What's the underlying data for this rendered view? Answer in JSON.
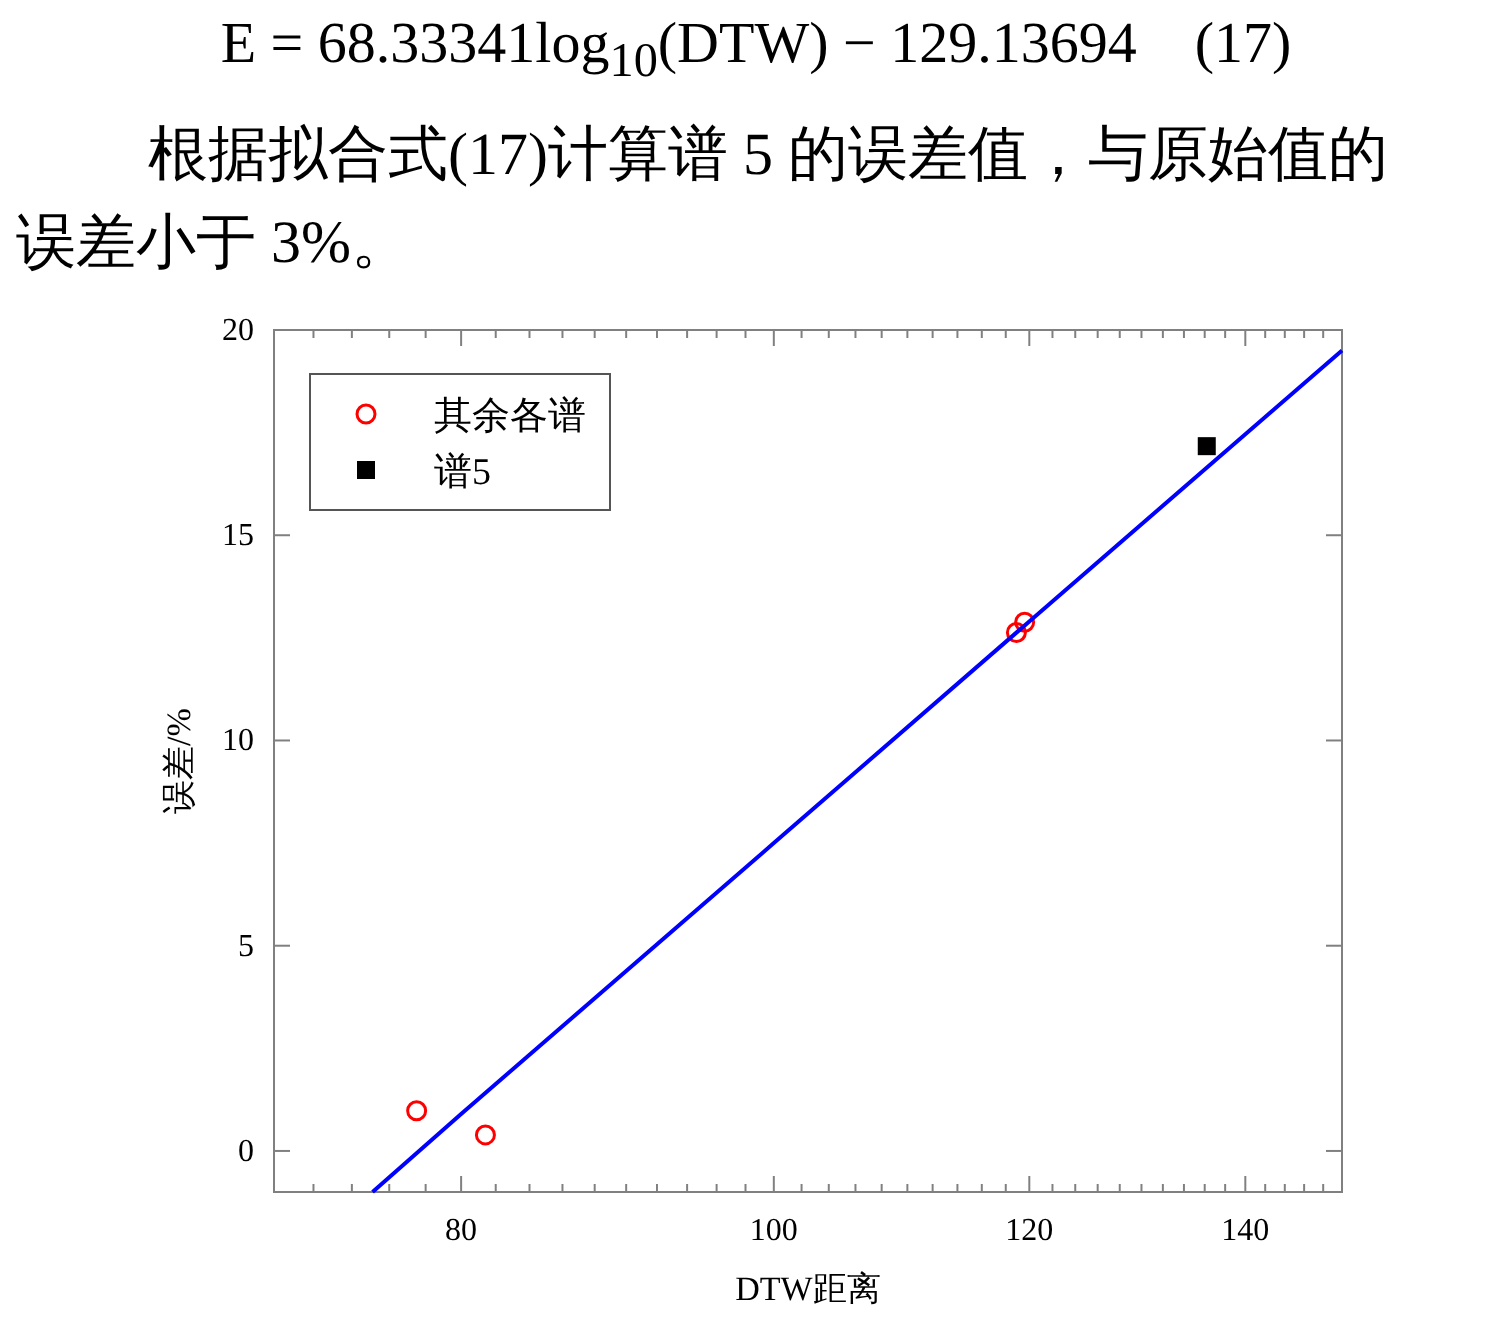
{
  "chart_data": {
    "type": "scatter",
    "annotations": [
      "E = 68.33341log$_{10}$(DTW) − 129.13694    (17)",
      "根据拟合式(17)计算谱 5 的误差值，与原始值的误差小于 3%。"
    ],
    "xlabel": "DTW距离",
    "ylabel": "误差/%",
    "log": "x",
    "xlim": [
      70,
      150
    ],
    "ylim": [
      -1,
      20
    ],
    "xticks": [
      {
        "value": 72,
        "label": null
      },
      {
        "value": 74,
        "label": null
      },
      {
        "value": 76,
        "label": null
      },
      {
        "value": 78,
        "label": null
      },
      80,
      {
        "value": 82,
        "label": null
      },
      {
        "value": 84,
        "label": null
      },
      {
        "value": 86,
        "label": null
      },
      {
        "value": 88,
        "label": null
      },
      {
        "value": 90,
        "label": null
      },
      {
        "value": 92,
        "label": null
      },
      {
        "value": 94,
        "label": null
      },
      {
        "value": 96,
        "label": null
      },
      {
        "value": 98,
        "label": null
      },
      100,
      {
        "value": 102,
        "label": null
      },
      {
        "value": 104,
        "label": null
      },
      {
        "value": 106,
        "label": null
      },
      {
        "value": 108,
        "label": null
      },
      {
        "value": 110,
        "label": null
      },
      {
        "value": 112,
        "label": null
      },
      {
        "value": 114,
        "label": null
      },
      {
        "value": 116,
        "label": null
      },
      {
        "value": 118,
        "label": null
      },
      120,
      {
        "value": 122,
        "label": null
      },
      {
        "value": 124,
        "label": null
      },
      {
        "value": 126,
        "label": null
      },
      {
        "value": 128,
        "label": null
      },
      {
        "value": 130,
        "label": null
      },
      {
        "value": 132,
        "label": null
      },
      {
        "value": 134,
        "label": null
      },
      {
        "value": 136,
        "label": null
      },
      {
        "value": 138,
        "label": null
      },
      140,
      {
        "value": 142,
        "label": null
      },
      {
        "value": 144,
        "label": null
      },
      {
        "value": 146,
        "label": null
      },
      {
        "value": 148,
        "label": null
      }
    ],
    "yticks": [
      0,
      5,
      10,
      15,
      20
    ],
    "grid": false,
    "legend": "top left",
    "series": [
      {
        "name": "其余各谱",
        "type": "scatter",
        "marker": "circle",
        "color": "#ff0000",
        "x": [
          77.5,
          81.4,
          118.9,
          119.6
        ],
        "values": [
          0.98,
          0.39,
          12.63,
          12.88
        ]
      },
      {
        "name": "谱5",
        "type": "scatter",
        "marker": "square",
        "color": "#000000",
        "x": [
          136.2
        ],
        "values": [
          17.17
        ]
      },
      {
        "type": "line",
        "marker": "none",
        "line_style": "solid",
        "color": "#0000ff",
        "x": [
          75.1,
          80,
          100,
          120,
          150
        ],
        "values": [
          -1.0,
          0.9,
          7.5,
          12.9,
          19.5
        ]
      }
    ]
  }
}
